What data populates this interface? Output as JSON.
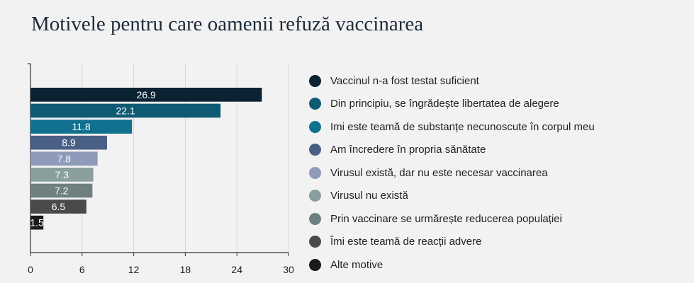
{
  "chart_data": {
    "type": "bar",
    "orientation": "horizontal",
    "title": "Motivele pentru care oamenii refuză vaccinarea",
    "categories": [
      "Vaccinul n-a fost testat suficient",
      "Din principiu, se îngrădește libertatea de alegere",
      "Imi este teamă de substanțe necunoscute în corpul meu",
      "Am încredere în propria sănătate",
      "Virusul există, dar nu este necesar vaccinarea",
      "Virusul nu există",
      "Prin vaccinare se urmărește reducerea populației",
      "Îmi este teamă de reacții advere",
      "Alte motive"
    ],
    "values": [
      26.9,
      22.1,
      11.8,
      8.9,
      7.8,
      7.3,
      7.2,
      6.5,
      1.5
    ],
    "value_labels": [
      "26.9",
      "22.1",
      "11.8",
      "8.9",
      "7.8",
      "7.3",
      "7.2",
      "6.5",
      "1.5"
    ],
    "colors": [
      "#0b2233",
      "#0e5a73",
      "#10718f",
      "#4a5f86",
      "#8e9ab8",
      "#8a9e9e",
      "#6e8080",
      "#4a4a4a",
      "#1a1a1a"
    ],
    "xlim": [
      0,
      30
    ],
    "xticks": [
      "0",
      "6",
      "12",
      "18",
      "24",
      "30"
    ],
    "grid": true,
    "legend_position": "right"
  }
}
